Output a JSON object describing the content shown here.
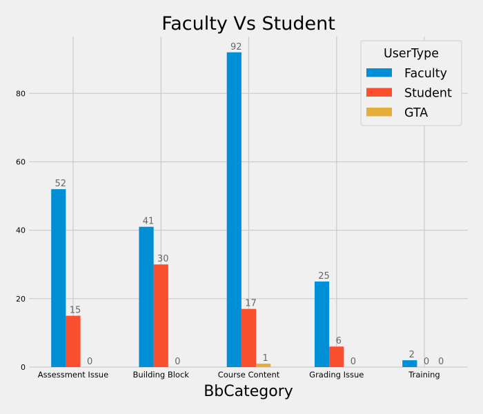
{
  "chart_data": {
    "type": "bar",
    "title": "Faculty Vs Student",
    "xlabel": "BbCategory",
    "ylabel": "",
    "categories": [
      "Assessment Issue",
      "Building Block",
      "Course Content",
      "Grading Issue",
      "Training"
    ],
    "series": [
      {
        "name": "Faculty",
        "color": "#008fd5",
        "values": [
          52,
          41,
          92,
          25,
          2
        ]
      },
      {
        "name": "Student",
        "color": "#fc4f30",
        "values": [
          15,
          30,
          17,
          6,
          0
        ]
      },
      {
        "name": "GTA",
        "color": "#e5ae38",
        "values": [
          0,
          0,
          1,
          0,
          0
        ]
      }
    ],
    "ylim": [
      0,
      96.6
    ],
    "yticks": [
      0,
      20,
      40,
      60,
      80
    ],
    "grid": true,
    "legend": {
      "title": "UserType",
      "placement": "top-right"
    },
    "data_labels": true
  }
}
